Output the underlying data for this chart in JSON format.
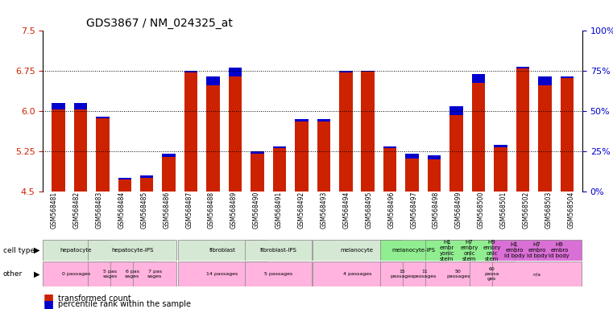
{
  "title": "GDS3867 / NM_024325_at",
  "samples": [
    "GSM568481",
    "GSM568482",
    "GSM568483",
    "GSM568484",
    "GSM568485",
    "GSM568486",
    "GSM568487",
    "GSM568488",
    "GSM568489",
    "GSM568490",
    "GSM568491",
    "GSM568492",
    "GSM568493",
    "GSM568494",
    "GSM568495",
    "GSM568496",
    "GSM568497",
    "GSM568498",
    "GSM568499",
    "GSM568500",
    "GSM568501",
    "GSM568502",
    "GSM568503",
    "GSM568504"
  ],
  "red_values": [
    6.15,
    6.15,
    5.9,
    4.75,
    4.8,
    5.2,
    6.75,
    6.65,
    6.82,
    5.25,
    5.35,
    5.85,
    5.85,
    6.75,
    6.75,
    5.35,
    5.2,
    5.18,
    6.1,
    6.7,
    5.38,
    6.83,
    6.65,
    6.65
  ],
  "blue_values": [
    0.4,
    0.4,
    0.1,
    0.08,
    0.12,
    0.18,
    0.08,
    0.55,
    0.55,
    0.15,
    0.15,
    0.15,
    0.15,
    0.08,
    0.05,
    0.12,
    0.28,
    0.28,
    0.55,
    0.55,
    0.18,
    0.08,
    0.55,
    0.08
  ],
  "ymin": 4.5,
  "ymax": 7.5,
  "yticks": [
    4.5,
    5.25,
    6.0,
    6.75,
    7.5
  ],
  "right_yticks": [
    0,
    25,
    50,
    75,
    100
  ],
  "right_ytick_labels": [
    "0%",
    "25%",
    "50%",
    "75%",
    "100%"
  ],
  "cell_type_groups": [
    {
      "label": "hepatocyte",
      "start": 0,
      "end": 2,
      "color": "#d5e8d4"
    },
    {
      "label": "hepatocyte-iPS",
      "start": 2,
      "end": 5,
      "color": "#d5e8d4"
    },
    {
      "label": "fibroblast",
      "start": 6,
      "end": 9,
      "color": "#d5e8d4"
    },
    {
      "label": "fibroblast-IPS",
      "start": 9,
      "end": 11,
      "color": "#d5e8d4"
    },
    {
      "label": "melanocyte",
      "start": 12,
      "end": 15,
      "color": "#d5e8d4"
    },
    {
      "label": "melanocyte-IPS",
      "start": 15,
      "end": 17,
      "color": "#90ee90"
    },
    {
      "label": "H1\nembr\nyonic\nstem",
      "start": 17,
      "end": 18,
      "color": "#90ee90"
    },
    {
      "label": "H7\nembry\nonic\nstem",
      "start": 18,
      "end": 19,
      "color": "#90ee90"
    },
    {
      "label": "H9\nembry\nonic\nstem",
      "start": 19,
      "end": 20,
      "color": "#90ee90"
    },
    {
      "label": "H1\nembro\nid body",
      "start": 20,
      "end": 21,
      "color": "#da70d6"
    },
    {
      "label": "H7\nembro\nid body",
      "start": 21,
      "end": 22,
      "color": "#da70d6"
    },
    {
      "label": "H9\nembro\nid body",
      "start": 22,
      "end": 23,
      "color": "#da70d6"
    }
  ],
  "other_groups": [
    {
      "label": "0 passages",
      "start": 0,
      "end": 2,
      "color": "#ffb3de"
    },
    {
      "label": "5 pas\nsages",
      "start": 2,
      "end": 3,
      "color": "#ffb3de"
    },
    {
      "label": "6 pas\nsages",
      "start": 3,
      "end": 4,
      "color": "#ffb3de"
    },
    {
      "label": "7 pas\nsages",
      "start": 4,
      "end": 5,
      "color": "#ffb3de"
    },
    {
      "label": "14 passages",
      "start": 6,
      "end": 9,
      "color": "#ffb3de"
    },
    {
      "label": "5 passages",
      "start": 9,
      "end": 11,
      "color": "#ffb3de"
    },
    {
      "label": "4 passages",
      "start": 12,
      "end": 15,
      "color": "#ffb3de"
    },
    {
      "label": "15\npassages",
      "start": 15,
      "end": 16,
      "color": "#ffb3de"
    },
    {
      "label": "11\npassages",
      "start": 16,
      "end": 17,
      "color": "#ffb3de"
    },
    {
      "label": "50\npassages",
      "start": 17,
      "end": 19,
      "color": "#ffb3de"
    },
    {
      "label": "60\npassa\nges",
      "start": 19,
      "end": 20,
      "color": "#ffb3de"
    },
    {
      "label": "n/a",
      "start": 20,
      "end": 23,
      "color": "#ffb3de"
    }
  ],
  "bar_color": "#cc2200",
  "blue_color": "#0000cc",
  "bg_color": "#ffffff",
  "title_fontsize": 10,
  "axis_label_color_left": "#cc2200",
  "axis_label_color_right": "#0000cc"
}
